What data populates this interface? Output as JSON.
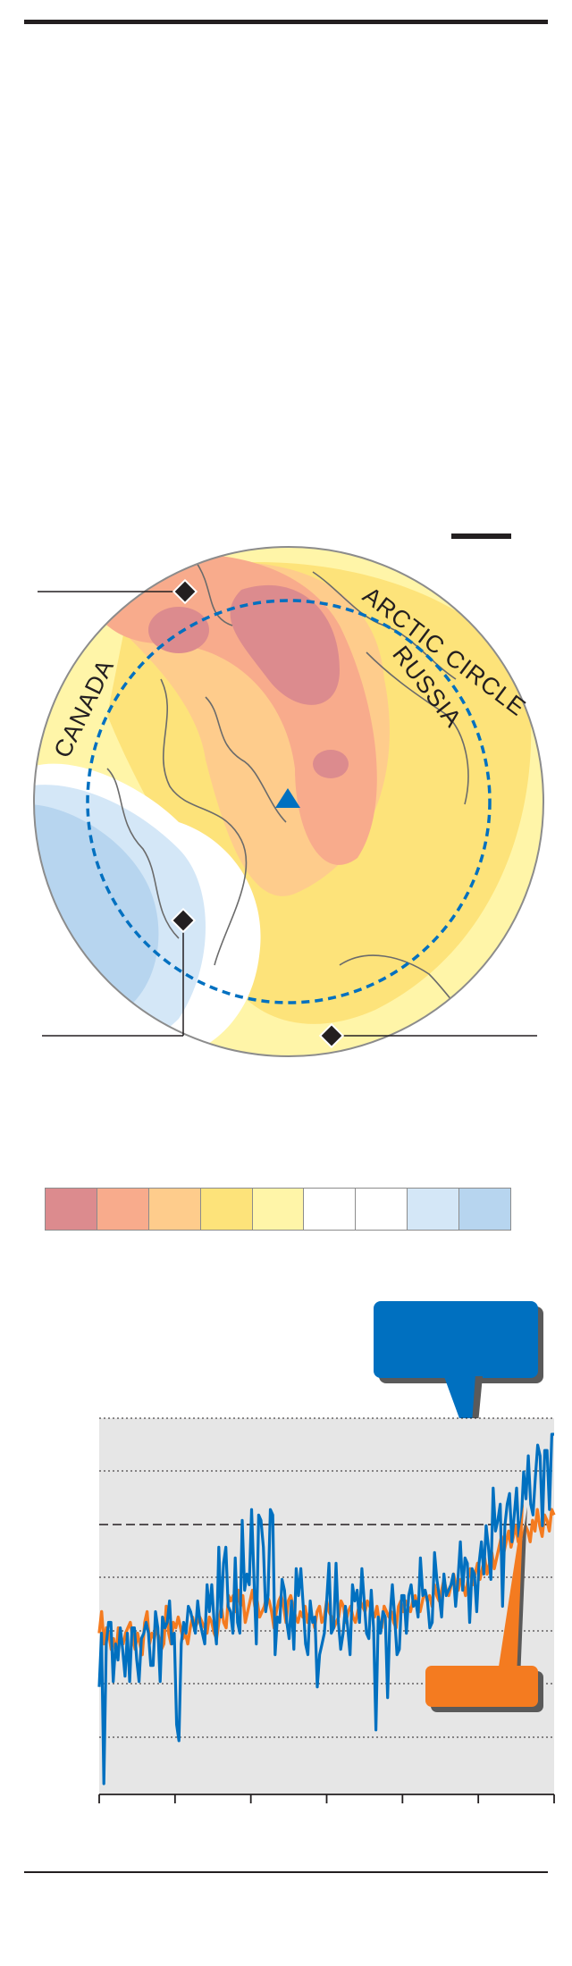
{
  "map": {
    "labels": {
      "canada": "CANADA",
      "russia": "RUSSIA",
      "arctic_circle": "ARCTIC CIRCLE"
    },
    "colors": {
      "ocean_outline": "#8c8c8c",
      "arctic_circle_line": "#0070c0",
      "north_pole_marker": "#0070c0",
      "location_marker": "#231f20",
      "coastline": "#6b6b6b"
    },
    "anomaly_colors": [
      "#dc8b8e",
      "#f8ab8c",
      "#fecc8c",
      "#fde37a",
      "#fff5a8",
      "#ffffff",
      "#ffffff",
      "#d4e7f7",
      "#b7d5ef"
    ]
  },
  "legend": {
    "swatches": [
      "#dc8b8e",
      "#f8ab8c",
      "#fecc8c",
      "#fde37a",
      "#fff5a8",
      "#ffffff",
      "#ffffff",
      "#d4e7f7",
      "#b7d5ef"
    ]
  },
  "chart_data": {
    "type": "line",
    "title": "",
    "xlabel": "",
    "ylabel": "",
    "x_tick_count": 7,
    "grid": "dotted horizontal",
    "reference_line": "dashed",
    "background": "#e6e6e6",
    "series": [
      {
        "color": "#0070c0",
        "values": [
          -1.4,
          -0.4,
          -3.2,
          -0.6,
          -0.2,
          -0.2,
          -1.3,
          -0.6,
          -0.9,
          -0.3,
          -0.7,
          -1.2,
          -0.4,
          -1.3,
          -0.3,
          -0.3,
          -0.9,
          -1.3,
          -0.5,
          -0.4,
          -0.2,
          -0.4,
          -1.0,
          -1.0,
          0.0,
          -0.3,
          -1.3,
          -0.1,
          -0.3,
          -0.2,
          0.2,
          -0.6,
          -0.4,
          -2.1,
          -2.4,
          -0.6,
          -0.2,
          -0.4,
          0.1,
          0.0,
          -0.2,
          -0.4,
          0.2,
          -0.2,
          -0.4,
          -0.6,
          0.5,
          0.0,
          0.5,
          -0.2,
          -0.6,
          1.2,
          -0.1,
          0.9,
          1.2,
          0.1,
          0.0,
          -0.4,
          1.0,
          -0.2,
          -0.4,
          1.7,
          0.4,
          0.7,
          0.5,
          1.9,
          0.6,
          -0.6,
          1.8,
          1.7,
          1.2,
          0.0,
          0.3,
          1.9,
          1.8,
          -0.8,
          -0.1,
          -0.2,
          0.6,
          0.4,
          -0.2,
          -0.5,
          0.2,
          -0.7,
          0.8,
          0.3,
          0.8,
          0.1,
          -0.6,
          -0.8,
          0.2,
          -0.2,
          -0.1,
          -1.4,
          -0.8,
          -0.6,
          -0.4,
          0.2,
          0.9,
          -0.4,
          -0.3,
          0.9,
          -0.2,
          -0.7,
          -0.4,
          0.1,
          -0.3,
          -0.8,
          0.5,
          0.2,
          0.4,
          -0.2,
          0.8,
          0.2,
          -0.4,
          -0.5,
          0.4,
          -0.3,
          -2.2,
          -0.1,
          -0.4,
          0.0,
          -0.1,
          -1.6,
          -0.1,
          0.5,
          -0.1,
          -0.8,
          -0.7,
          0.3,
          0.3,
          -0.4,
          0.3,
          0.5,
          0.1,
          0.2,
          -0.1,
          1.0,
          0.3,
          0.4,
          0.2,
          -0.3,
          -0.2,
          1.1,
          0.6,
          0.3,
          -0.1,
          0.7,
          0.3,
          0.4,
          0.5,
          0.7,
          0.1,
          0.6,
          1.3,
          0.4,
          1.0,
          0.9,
          -0.2,
          0.8,
          0.7,
          0.0,
          0.9,
          1.3,
          0.7,
          1.6,
          1.2,
          0.6,
          2.3,
          1.5,
          1.7,
          2.0,
          0.1,
          1.6,
          2.0,
          2.2,
          1.3,
          1.8,
          2.3,
          1.4,
          1.7,
          2.6,
          2.1,
          2.9,
          2.0,
          1.8,
          2.5,
          3.1,
          2.9,
          1.6,
          3.0,
          3.0,
          1.9,
          3.3,
          3.3
        ]
      },
      {
        "color": "#f47b20",
        "values": [
          -0.4,
          0.0,
          -0.6,
          -0.3,
          -0.4,
          -0.7,
          -0.5,
          -0.8,
          -0.3,
          -0.5,
          -0.6,
          -0.4,
          -0.3,
          -0.2,
          -0.5,
          -0.7,
          -0.4,
          -0.6,
          -0.8,
          -0.2,
          0.0,
          -0.6,
          -0.4,
          -0.5,
          -0.3,
          -0.5,
          -0.7,
          -0.6,
          0.1,
          -0.4,
          -0.6,
          -0.2,
          -0.3,
          -0.1,
          -0.3,
          -0.5,
          -0.4,
          -0.6,
          -0.3,
          -0.1,
          -0.3,
          -0.2,
          -0.1,
          -0.2,
          -0.3,
          -0.4,
          -0.1,
          -0.2,
          -0.4,
          -0.5,
          -0.2,
          0.1,
          -0.2,
          -0.3,
          0.3,
          0.2,
          0.3,
          0.0,
          0.4,
          0.1,
          0.3,
          -0.2,
          0.0,
          0.2,
          0.4,
          0.1,
          0.2,
          -0.1,
          0.0,
          0.1,
          0.3,
          0.2,
          0.0,
          -0.3,
          0.0,
          0.2,
          0.3,
          0.1,
          -0.2,
          0.2,
          0.3,
          0.1,
          -0.1,
          -0.2,
          0.0,
          -0.1,
          0.1,
          -0.2,
          0.0,
          -0.1,
          -0.3,
          0.0,
          0.1,
          -0.2,
          -0.1,
          0.2,
          0.0,
          -0.1,
          -0.3,
          -0.2,
          -0.1,
          0.2,
          0.1,
          -0.2,
          0.0,
          0.1,
          -0.1,
          -0.2,
          0.0,
          0.2,
          0.1,
          0.0,
          0.2,
          0.1,
          0.0,
          -0.1,
          0.1,
          -0.2,
          -0.3,
          0.1,
          0.0,
          -0.1,
          0.0,
          -0.2,
          -0.3,
          0.1,
          0.2,
          0.0,
          0.2,
          0.1,
          0.0,
          0.2,
          0.3,
          0.1,
          0.0,
          0.2,
          0.4,
          0.2,
          0.3,
          0.1,
          0.5,
          0.3,
          0.2,
          0.4,
          0.6,
          0.4,
          0.3,
          0.5,
          0.7,
          0.5,
          0.4,
          0.6,
          0.5,
          0.3,
          0.6,
          0.8,
          0.5,
          0.7,
          0.9,
          0.6,
          0.8,
          1.0,
          0.7,
          0.9,
          1.1,
          0.8,
          1.0,
          1.2,
          1.4,
          1.1,
          1.3,
          1.5,
          1.2,
          1.4,
          1.6,
          1.3,
          1.5,
          1.4,
          1.6,
          1.5,
          1.3,
          1.7,
          1.5,
          1.9,
          1.6,
          1.4,
          1.8,
          1.7,
          1.5,
          1.9,
          1.8
        ]
      }
    ]
  }
}
